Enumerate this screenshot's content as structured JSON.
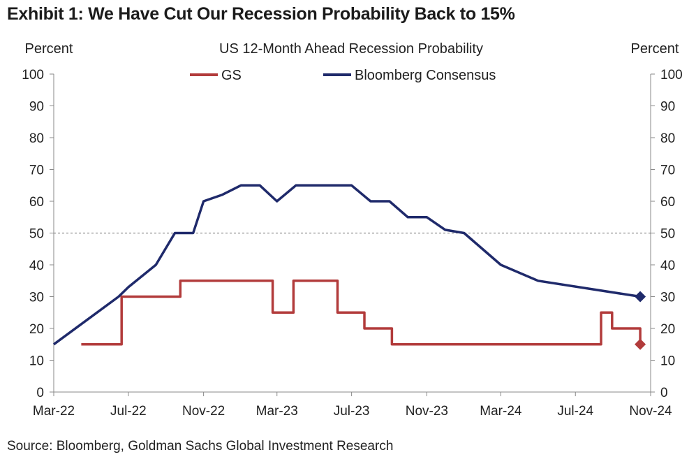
{
  "title": "Exhibit 1: We Have Cut Our Recession Probability Back to 15%",
  "source": "Source: Bloomberg, Goldman Sachs Global Investment Research",
  "chart_data": {
    "type": "line",
    "title": "US 12-Month  Ahead  Recession Probability",
    "ylabel_left": "Percent",
    "ylabel_right": "Percent",
    "ylim": [
      0,
      100
    ],
    "yticks": [
      0,
      10,
      20,
      30,
      40,
      50,
      60,
      70,
      80,
      90,
      100
    ],
    "x_range": [
      "2022-03-01",
      "2024-11-01"
    ],
    "x_tick_labels": [
      "Mar-22",
      "Jul-22",
      "Nov-22",
      "Mar-23",
      "Jul-23",
      "Nov-23",
      "Mar-24",
      "Jul-24",
      "Nov-24"
    ],
    "x_tick_dates": [
      "2022-03-01",
      "2022-07-01",
      "2022-11-01",
      "2023-03-01",
      "2023-07-01",
      "2023-11-01",
      "2024-03-01",
      "2024-07-01",
      "2024-11-01"
    ],
    "reference_line": {
      "y": 50,
      "style": "dashed"
    },
    "legend_position": "top-center",
    "series": [
      {
        "name": "GS",
        "color": "#b23b3b",
        "step": true,
        "points": [
          [
            "2022-04-15",
            15
          ],
          [
            "2022-06-20",
            15
          ],
          [
            "2022-06-20",
            30
          ],
          [
            "2022-09-24",
            30
          ],
          [
            "2022-09-24",
            35
          ],
          [
            "2023-02-22",
            35
          ],
          [
            "2023-02-22",
            25
          ],
          [
            "2023-03-28",
            25
          ],
          [
            "2023-03-28",
            35
          ],
          [
            "2023-06-08",
            35
          ],
          [
            "2023-06-08",
            25
          ],
          [
            "2023-07-22",
            25
          ],
          [
            "2023-07-22",
            20
          ],
          [
            "2023-09-05",
            20
          ],
          [
            "2023-09-05",
            15
          ],
          [
            "2024-08-12",
            15
          ],
          [
            "2024-08-12",
            25
          ],
          [
            "2024-08-30",
            25
          ],
          [
            "2024-08-30",
            20
          ],
          [
            "2024-10-15",
            20
          ],
          [
            "2024-10-15",
            15
          ]
        ],
        "final_marker": {
          "date": "2024-10-15",
          "value": 15,
          "shape": "diamond"
        }
      },
      {
        "name": "Bloomberg Consensus",
        "color": "#1f2a6b",
        "step": false,
        "points": [
          [
            "2022-03-01",
            15
          ],
          [
            "2022-06-15",
            30
          ],
          [
            "2022-07-01",
            33
          ],
          [
            "2022-08-15",
            40
          ],
          [
            "2022-09-15",
            50
          ],
          [
            "2022-10-15",
            50
          ],
          [
            "2022-11-01",
            60
          ],
          [
            "2022-12-01",
            62
          ],
          [
            "2023-01-01",
            65
          ],
          [
            "2023-02-01",
            65
          ],
          [
            "2023-03-01",
            60
          ],
          [
            "2023-04-01",
            65
          ],
          [
            "2023-07-01",
            65
          ],
          [
            "2023-08-01",
            60
          ],
          [
            "2023-09-01",
            60
          ],
          [
            "2023-10-01",
            55
          ],
          [
            "2023-11-01",
            55
          ],
          [
            "2023-12-01",
            51
          ],
          [
            "2024-01-01",
            50
          ],
          [
            "2024-03-01",
            40
          ],
          [
            "2024-05-01",
            35
          ],
          [
            "2024-10-15",
            30
          ]
        ],
        "final_marker": {
          "date": "2024-10-15",
          "value": 30,
          "shape": "diamond"
        }
      }
    ]
  }
}
